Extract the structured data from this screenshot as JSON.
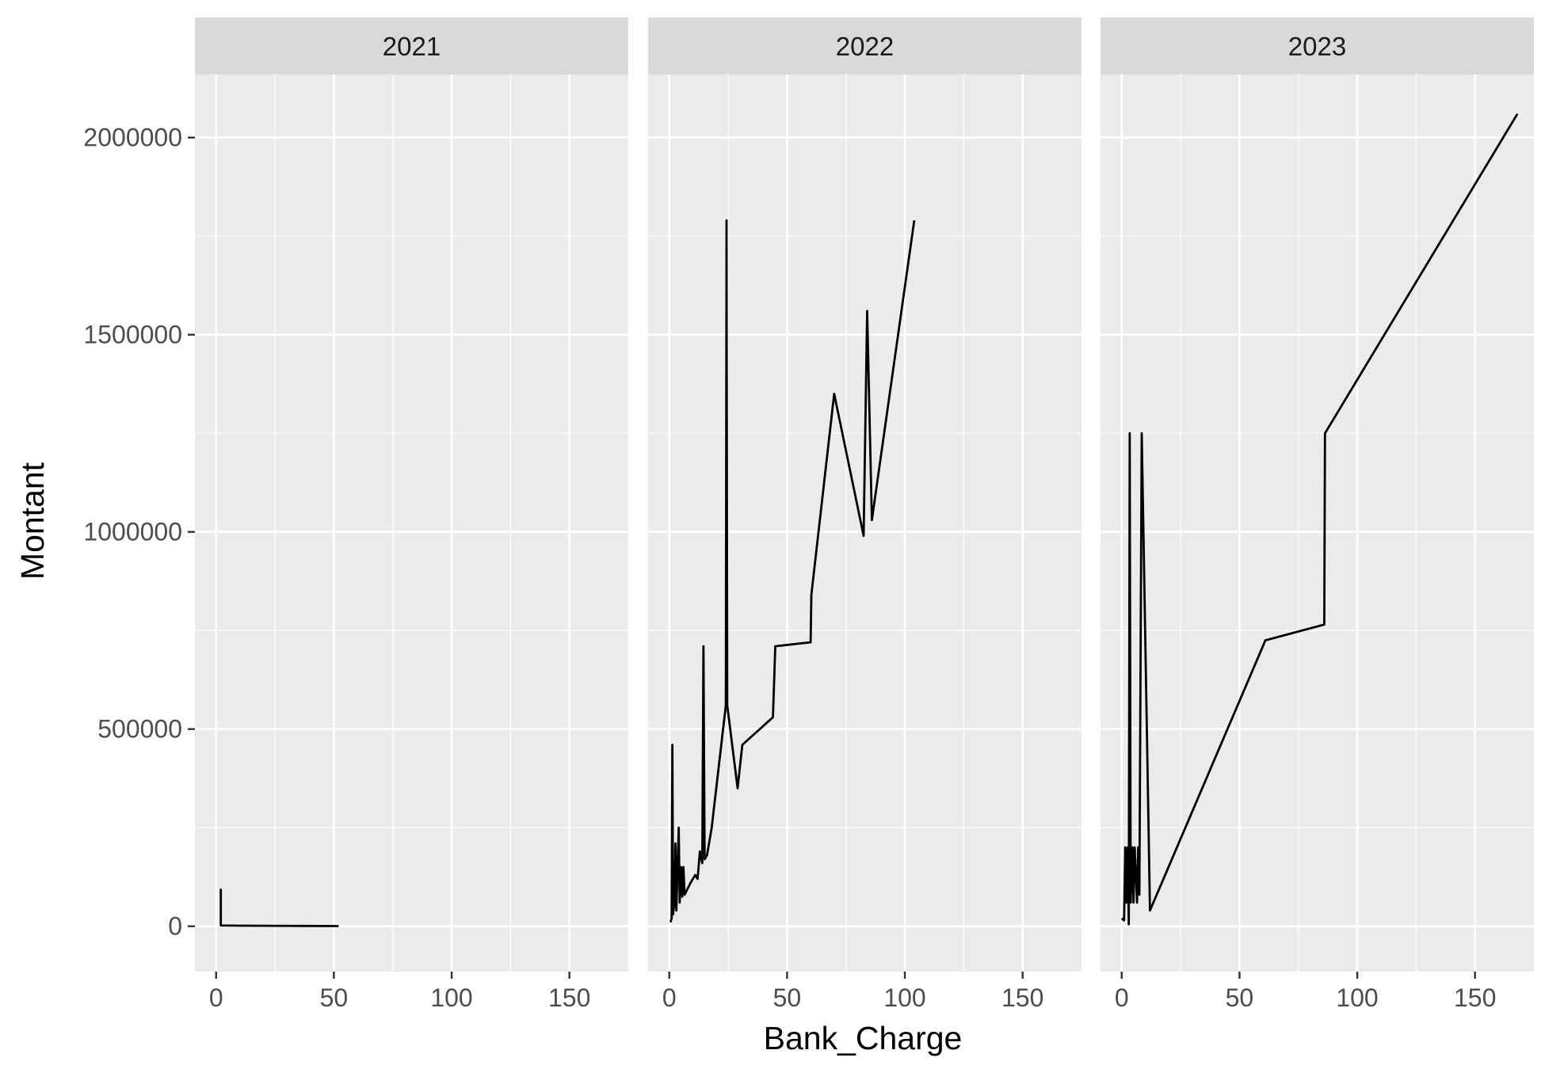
{
  "chart_data": {
    "type": "line",
    "facet_variable": "year",
    "xlabel": "Bank_Charge",
    "ylabel": "Montant",
    "xlim": [
      -9,
      175
    ],
    "ylim": [
      -115000,
      2160000
    ],
    "x_ticks": [
      0,
      50,
      100,
      150
    ],
    "y_ticks": [
      0,
      500000,
      1000000,
      1500000,
      2000000
    ],
    "y_tick_labels": [
      "0",
      "500000",
      "1000000",
      "1500000",
      "2000000"
    ],
    "x_tick_labels": [
      "0",
      "50",
      "100",
      "150"
    ],
    "grid": true,
    "line_color": "#000000",
    "panel_background": "#ebebeb",
    "strip_background": "#d9d9d9",
    "grid_color": "#ffffff",
    "facets": [
      {
        "label": "2021",
        "points": [
          [
            2,
            95000
          ],
          [
            2,
            2000
          ],
          [
            10,
            1500
          ],
          [
            30,
            1000
          ],
          [
            52,
            500
          ]
        ]
      },
      {
        "label": "2022",
        "points": [
          [
            0.5,
            10000
          ],
          [
            1,
            20000
          ],
          [
            1.3,
            460000
          ],
          [
            1.6,
            30000
          ],
          [
            2.2,
            60000
          ],
          [
            2.6,
            210000
          ],
          [
            3,
            40000
          ],
          [
            3.5,
            150000
          ],
          [
            4,
            250000
          ],
          [
            4.4,
            60000
          ],
          [
            5,
            150000
          ],
          [
            5.5,
            75000
          ],
          [
            6,
            150000
          ],
          [
            6.5,
            80000
          ],
          [
            9,
            110000
          ],
          [
            11,
            130000
          ],
          [
            12,
            120000
          ],
          [
            13,
            190000
          ],
          [
            14,
            160000
          ],
          [
            14.5,
            710000
          ],
          [
            15,
            170000
          ],
          [
            16,
            180000
          ],
          [
            18,
            250000
          ],
          [
            24,
            560000
          ],
          [
            24.3,
            1790000
          ],
          [
            24.6,
            560000
          ],
          [
            29,
            350000
          ],
          [
            31,
            460000
          ],
          [
            44,
            530000
          ],
          [
            45,
            710000
          ],
          [
            60,
            720000
          ],
          [
            60.3,
            840000
          ],
          [
            70,
            1350000
          ],
          [
            82.5,
            990000
          ],
          [
            84,
            1560000
          ],
          [
            86,
            1030000
          ],
          [
            104,
            1790000
          ]
        ]
      },
      {
        "label": "2023",
        "points": [
          [
            0,
            20000
          ],
          [
            1,
            15000
          ],
          [
            1.5,
            200000
          ],
          [
            2,
            60000
          ],
          [
            2.5,
            200000
          ],
          [
            3,
            5000
          ],
          [
            3.4,
            1250000
          ],
          [
            3.8,
            60000
          ],
          [
            4.5,
            200000
          ],
          [
            5,
            60000
          ],
          [
            5.5,
            200000
          ],
          [
            6.5,
            60000
          ],
          [
            7,
            200000
          ],
          [
            7.5,
            80000
          ],
          [
            8.5,
            1250000
          ],
          [
            12,
            40000
          ],
          [
            61,
            725000
          ],
          [
            86,
            765000
          ],
          [
            86.3,
            1250000
          ],
          [
            168,
            2060000
          ]
        ]
      }
    ]
  }
}
